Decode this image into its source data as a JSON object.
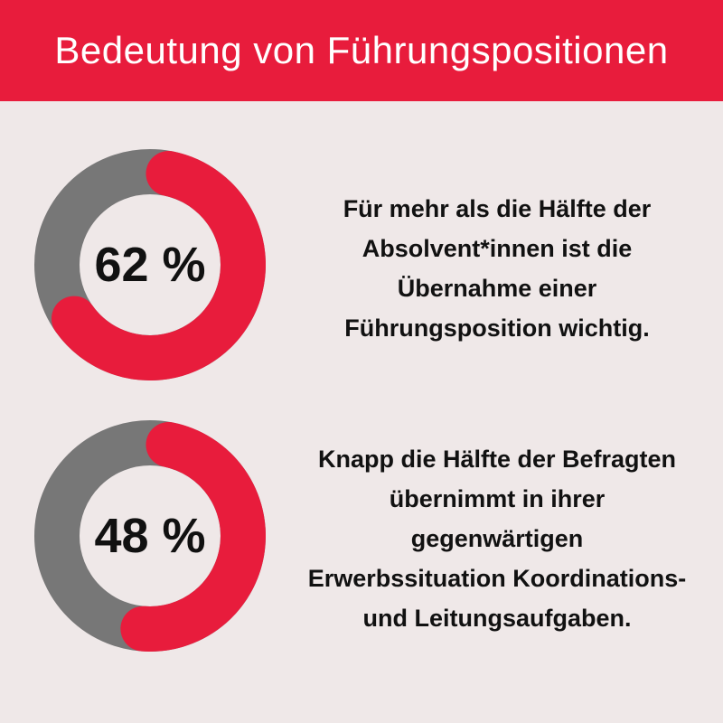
{
  "header": {
    "title": "Bedeutung von Führungspositionen"
  },
  "colors": {
    "accent": "#e81c3c",
    "remainder": "#777777",
    "background": "#efe8e8"
  },
  "chart_data": [
    {
      "type": "pie",
      "label": "62 %",
      "values": [
        62,
        38
      ],
      "description_lines": [
        "Für mehr als die Hälfte der",
        "Absolvent*innen ist die",
        "Übernahme einer",
        "Führungsposition wichtig."
      ]
    },
    {
      "type": "pie",
      "label": "48 %",
      "values": [
        48,
        52
      ],
      "description_lines": [
        "Knapp die Hälfte der Befragten",
        "übernimmt in ihrer",
        "gegenwärtigen",
        "Erwerbssituation Koordinations-",
        "und Leitungsaufgaben."
      ]
    }
  ]
}
